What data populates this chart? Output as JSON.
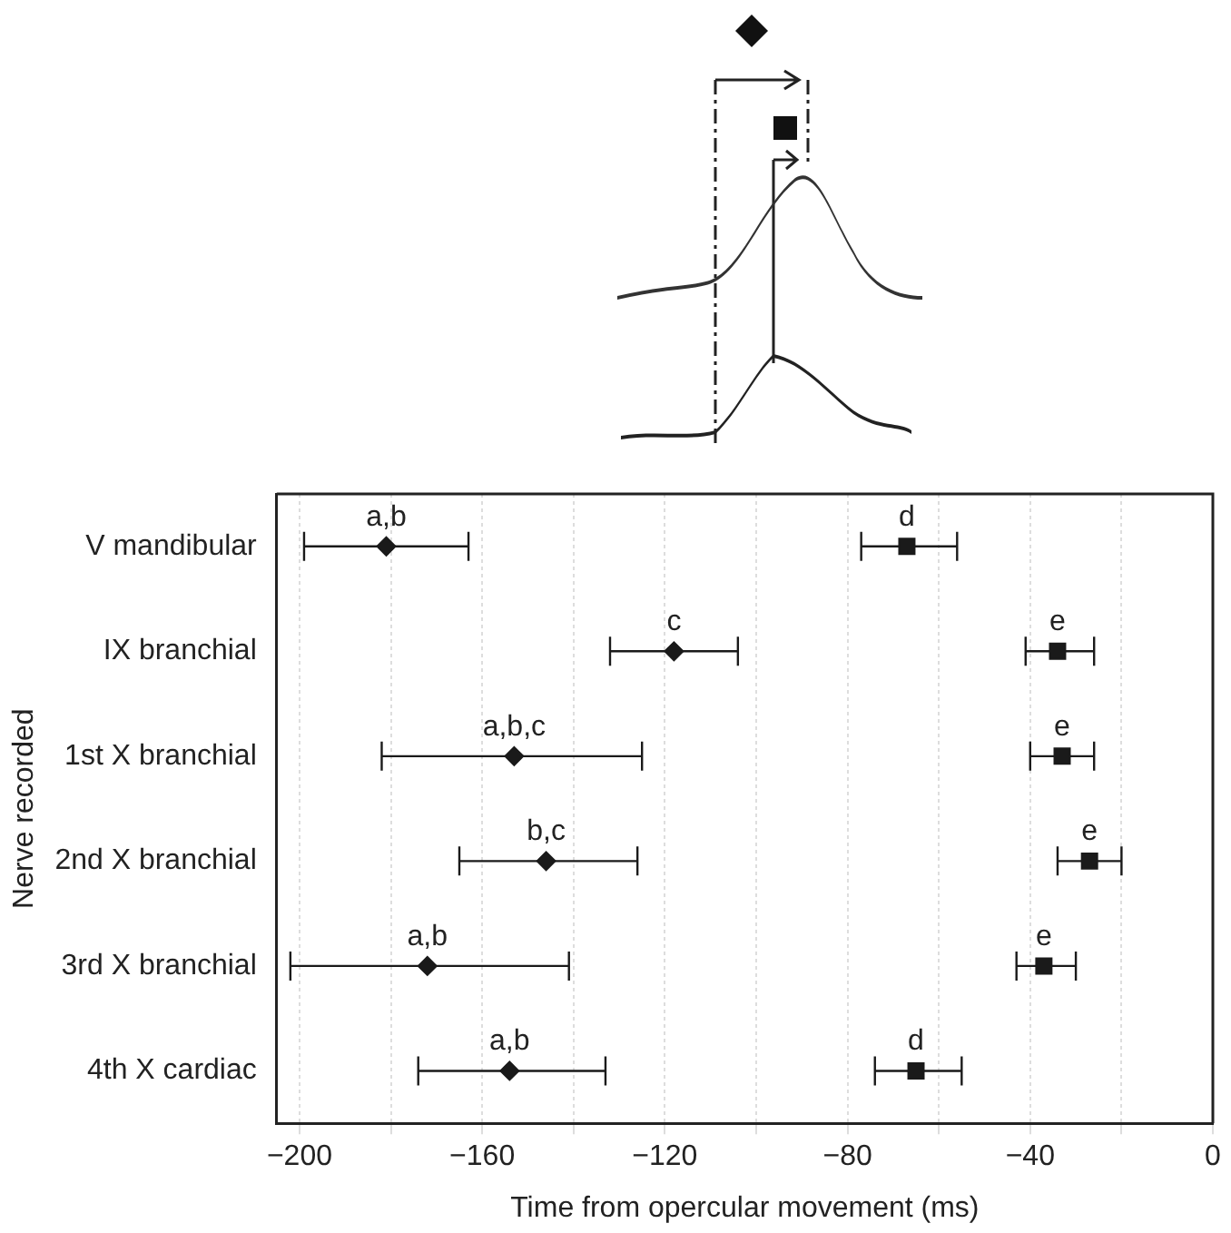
{
  "chart_data": {
    "type": "scatter",
    "xlabel": "Time from opercular movement (ms)",
    "ylabel": "Nerve recorded",
    "categories": [
      "V mandibular",
      "IX branchial",
      "1st X branchial",
      "2nd X branchial",
      "3rd X branchial",
      "4th X cardiac"
    ],
    "series": [
      {
        "color": "#1a1a1a",
        "marker": "diamond",
        "values": [
          -181,
          -118,
          -153,
          -146,
          -172,
          -154
        ],
        "errors": [
          [
            -199,
            -163
          ],
          [
            -132,
            -104
          ],
          [
            -182,
            -125
          ],
          [
            -165,
            -126
          ],
          [
            -202,
            -141
          ],
          [
            -174,
            -133
          ]
        ]
      },
      {
        "color": "#1a1a1a",
        "marker": "square",
        "values": [
          -67,
          -34,
          -33,
          -27,
          -37,
          -65
        ],
        "errors": [
          [
            -77,
            -56
          ],
          [
            -41,
            -26
          ],
          [
            -40,
            -26
          ],
          [
            -34,
            -20
          ],
          [
            -43,
            -30
          ],
          [
            -74,
            -55
          ]
        ]
      }
    ],
    "annotations": [
      {
        "text": "a,b",
        "x": -181,
        "y": "V mandibular"
      },
      {
        "text": "d",
        "x": -67,
        "y": "V mandibular"
      },
      {
        "text": "c",
        "x": -118,
        "y": "IX branchial"
      },
      {
        "text": "e",
        "x": -34,
        "y": "IX branchial"
      },
      {
        "text": "a,b,c",
        "x": -153,
        "y": "1st X branchial"
      },
      {
        "text": "e",
        "x": -33,
        "y": "1st X branchial"
      },
      {
        "text": "b,c",
        "x": -146,
        "y": "2nd X branchial"
      },
      {
        "text": "e",
        "x": -27,
        "y": "2nd X branchial"
      },
      {
        "text": "a,b",
        "x": -172,
        "y": "3rd X branchial"
      },
      {
        "text": "e",
        "x": -37,
        "y": "3rd X branchial"
      },
      {
        "text": "a,b",
        "x": -154,
        "y": "4th X cardiac"
      },
      {
        "text": "d",
        "x": -65,
        "y": "4th X cardiac"
      }
    ],
    "xlim": [
      -205,
      0
    ],
    "xticks": [
      {
        "value": -200,
        "label": "−200"
      },
      {
        "value": -180,
        "label": null
      },
      {
        "value": -160,
        "label": "−160"
      },
      {
        "value": -140,
        "label": null
      },
      {
        "value": -120,
        "label": "−120"
      },
      {
        "value": -100,
        "label": null
      },
      {
        "value": -80,
        "label": "−80"
      },
      {
        "value": -60,
        "label": null
      },
      {
        "value": -40,
        "label": "−40"
      },
      {
        "value": -20,
        "label": null
      },
      0
    ],
    "orientation": "horizontal",
    "grid": "x",
    "legend": false
  }
}
